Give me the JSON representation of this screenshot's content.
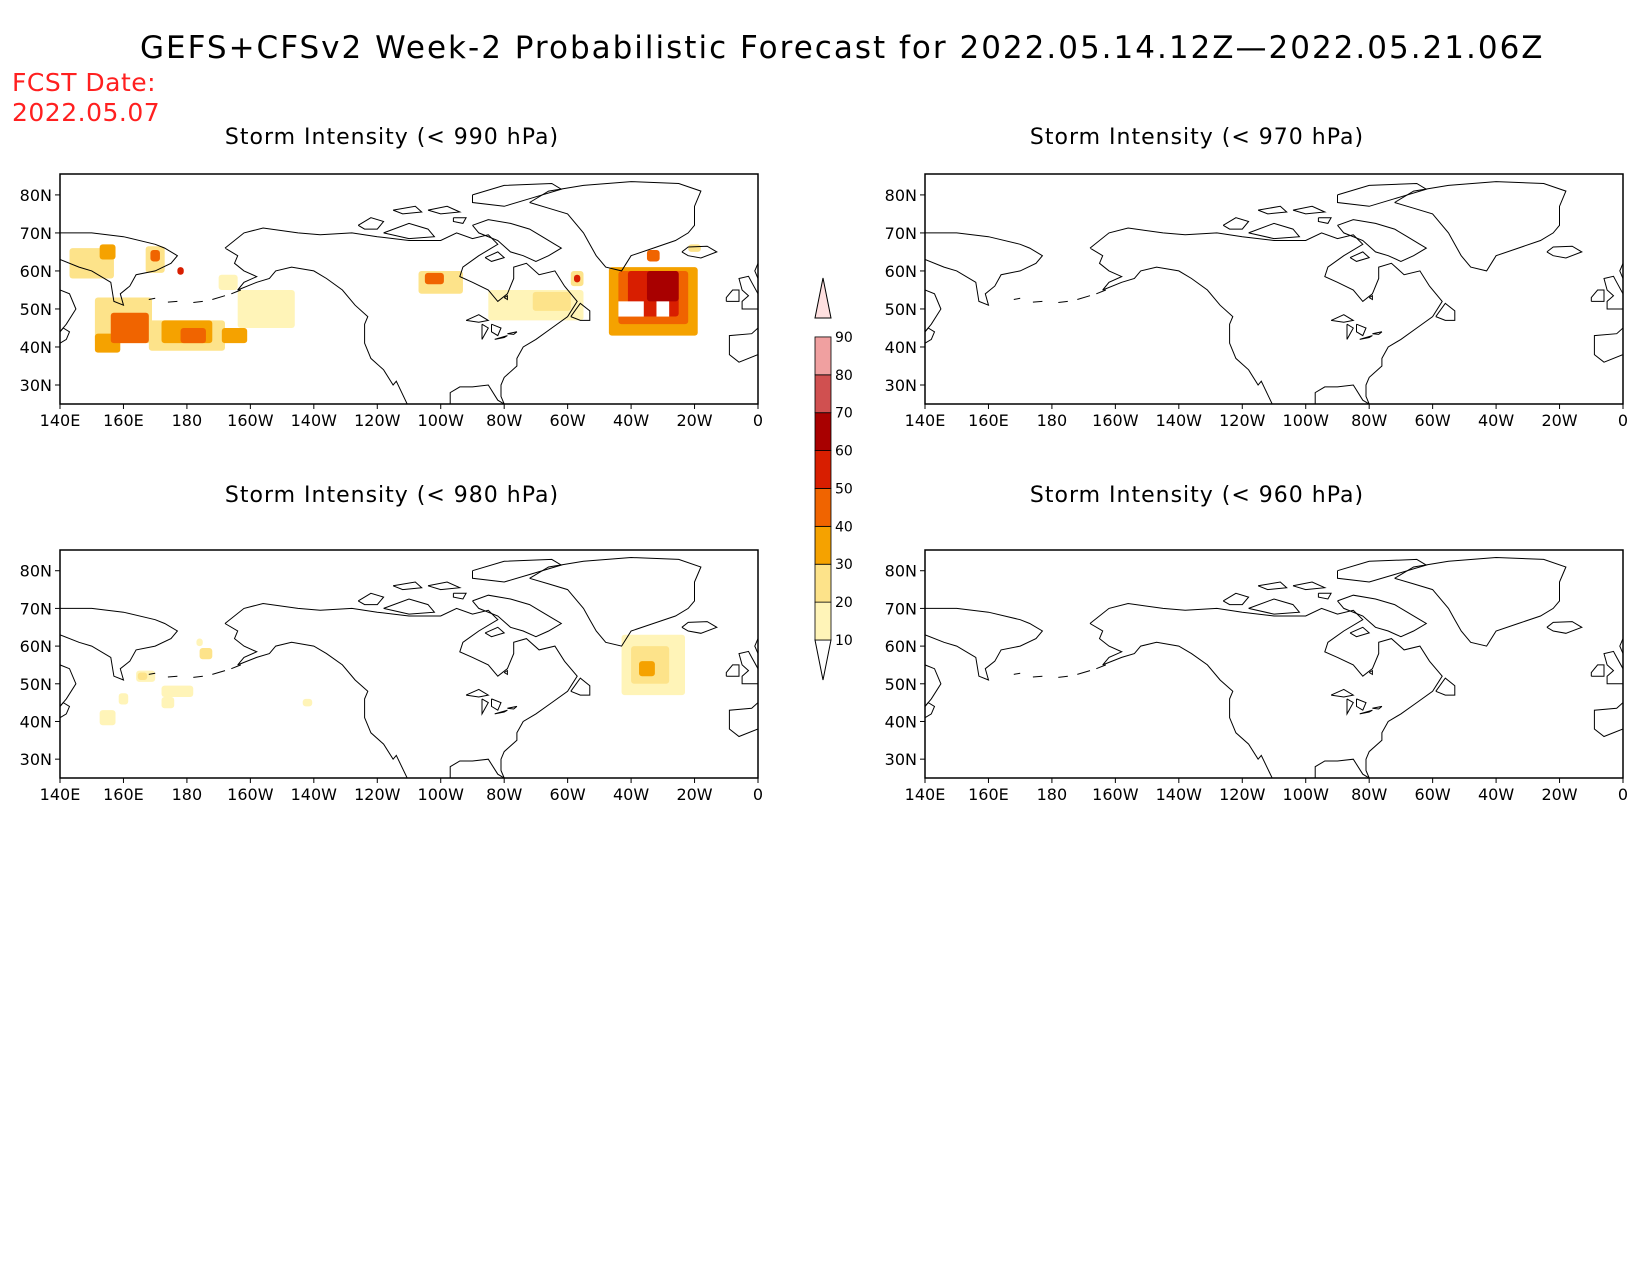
{
  "title": "GEFS+CFSv2 Week-2 Probabilistic Forecast for 2022.05.14.12Z—2022.05.21.06Z",
  "fcst_date_label": "FCST Date:",
  "fcst_date": "2022.05.07",
  "x_ticks": [
    "140E",
    "160E",
    "180",
    "160W",
    "140W",
    "120W",
    "100W",
    "80W",
    "60W",
    "40W",
    "20W",
    "0"
  ],
  "y_ticks": [
    "80N",
    "70N",
    "60N",
    "50N",
    "40N",
    "30N"
  ],
  "colors": {
    "c10": "#fff4b8",
    "c20": "#fde38a",
    "c30": "#f5a200",
    "c40": "#f06400",
    "c50": "#d81e00",
    "c60": "#a80000",
    "c70": "#d05050",
    "c80": "#f0a0a0",
    "c90": "#ffe0e0",
    "title_red": "#ff2020"
  },
  "colorbar": {
    "levels": [
      "10",
      "20",
      "30",
      "40",
      "50",
      "60",
      "70",
      "80",
      "90"
    ]
  },
  "panels": [
    {
      "id": "p990",
      "title": "Storm Intensity (< 990 hPa)",
      "blobs": [
        {
          "lon": -210,
          "lat": 62,
          "w": 14,
          "h": 8,
          "level": "c20"
        },
        {
          "lon": -205,
          "lat": 65,
          "w": 5,
          "h": 4,
          "level": "c30"
        },
        {
          "lon": -200,
          "lat": 47,
          "w": 18,
          "h": 12,
          "level": "c20"
        },
        {
          "lon": -198,
          "lat": 45,
          "w": 12,
          "h": 8,
          "level": "c40"
        },
        {
          "lon": -205,
          "lat": 41,
          "w": 8,
          "h": 5,
          "level": "c30"
        },
        {
          "lon": -190,
          "lat": 63,
          "w": 6,
          "h": 7,
          "level": "c20"
        },
        {
          "lon": -190,
          "lat": 64,
          "w": 3,
          "h": 3,
          "level": "c40"
        },
        {
          "lon": -182,
          "lat": 60,
          "w": 2,
          "h": 2,
          "level": "c50"
        },
        {
          "lon": -180,
          "lat": 43,
          "w": 24,
          "h": 8,
          "level": "c20"
        },
        {
          "lon": -180,
          "lat": 44,
          "w": 16,
          "h": 6,
          "level": "c30"
        },
        {
          "lon": -178,
          "lat": 43,
          "w": 8,
          "h": 4,
          "level": "c40"
        },
        {
          "lon": -165,
          "lat": 43,
          "w": 8,
          "h": 4,
          "level": "c30"
        },
        {
          "lon": -155,
          "lat": 50,
          "w": 18,
          "h": 10,
          "level": "c10"
        },
        {
          "lon": -167,
          "lat": 57,
          "w": 6,
          "h": 4,
          "level": "c10"
        },
        {
          "lon": -100,
          "lat": 57,
          "w": 14,
          "h": 6,
          "level": "c20"
        },
        {
          "lon": -102,
          "lat": 58,
          "w": 6,
          "h": 3,
          "level": "c40"
        },
        {
          "lon": -70,
          "lat": 51,
          "w": 30,
          "h": 8,
          "level": "c10"
        },
        {
          "lon": -65,
          "lat": 52,
          "w": 12,
          "h": 5,
          "level": "c20"
        },
        {
          "lon": -57,
          "lat": 58,
          "w": 4,
          "h": 4,
          "level": "c20"
        },
        {
          "lon": -57,
          "lat": 58,
          "w": 2,
          "h": 2,
          "level": "c50"
        },
        {
          "lon": -33,
          "lat": 52,
          "w": 28,
          "h": 18,
          "level": "c30"
        },
        {
          "lon": -33,
          "lat": 53,
          "w": 22,
          "h": 14,
          "level": "c40"
        },
        {
          "lon": -33,
          "lat": 54,
          "w": 16,
          "h": 12,
          "level": "c50"
        },
        {
          "lon": -30,
          "lat": 56,
          "w": 10,
          "h": 8,
          "level": "c60"
        },
        {
          "lon": -33,
          "lat": 64,
          "w": 4,
          "h": 3,
          "level": "c40"
        },
        {
          "lon": -20,
          "lat": 66,
          "w": 4,
          "h": 2,
          "level": "c20"
        }
      ],
      "holes": [
        {
          "lon": -40,
          "lat": 50,
          "w": 8,
          "h": 4
        },
        {
          "lon": -30,
          "lat": 50,
          "w": 4,
          "h": 4
        }
      ]
    },
    {
      "id": "p970",
      "title": "Storm Intensity (< 970 hPa)",
      "blobs": [],
      "holes": []
    },
    {
      "id": "p980",
      "title": "Storm Intensity (< 980 hPa)",
      "blobs": [
        {
          "lon": -193,
          "lat": 52,
          "w": 6,
          "h": 3,
          "level": "c10"
        },
        {
          "lon": -205,
          "lat": 41,
          "w": 5,
          "h": 4,
          "level": "c10"
        },
        {
          "lon": -200,
          "lat": 46,
          "w": 3,
          "h": 3,
          "level": "c10"
        },
        {
          "lon": -183,
          "lat": 48,
          "w": 10,
          "h": 3,
          "level": "c10"
        },
        {
          "lon": -186,
          "lat": 45,
          "w": 4,
          "h": 3,
          "level": "c10"
        },
        {
          "lon": -194,
          "lat": 52,
          "w": 3,
          "h": 2,
          "level": "c20"
        },
        {
          "lon": -174,
          "lat": 58,
          "w": 4,
          "h": 3,
          "level": "c20"
        },
        {
          "lon": -176,
          "lat": 61,
          "w": 2,
          "h": 2,
          "level": "c10"
        },
        {
          "lon": -142,
          "lat": 45,
          "w": 3,
          "h": 2,
          "level": "c10"
        },
        {
          "lon": -33,
          "lat": 55,
          "w": 20,
          "h": 16,
          "level": "c10"
        },
        {
          "lon": -34,
          "lat": 55,
          "w": 12,
          "h": 10,
          "level": "c20"
        },
        {
          "lon": -35,
          "lat": 54,
          "w": 5,
          "h": 4,
          "level": "c30"
        }
      ],
      "holes": []
    },
    {
      "id": "p960",
      "title": "Storm Intensity (< 960 hPa)",
      "blobs": [],
      "holes": []
    }
  ]
}
